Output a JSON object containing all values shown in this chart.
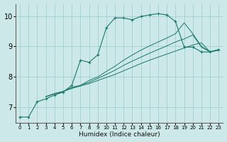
{
  "bg_color": "#cce8e8",
  "line_color": "#1a7a6a",
  "grid_color": "#99cccc",
  "xlabel": "Humidex (Indice chaleur)",
  "xlim": [
    -0.5,
    23.5
  ],
  "ylim": [
    6.5,
    10.4
  ],
  "yticks": [
    7,
    8,
    9,
    10
  ],
  "xticks": [
    0,
    1,
    2,
    3,
    4,
    5,
    6,
    7,
    8,
    9,
    10,
    11,
    12,
    13,
    14,
    15,
    16,
    17,
    18,
    19,
    20,
    21,
    22,
    23
  ],
  "series": [
    {
      "x": [
        0,
        1,
        2,
        3,
        4,
        5,
        6,
        7,
        8,
        9,
        10,
        11,
        12,
        13,
        14,
        15,
        16,
        17,
        18,
        19,
        20,
        21,
        22,
        23
      ],
      "y": [
        6.68,
        6.68,
        7.18,
        7.28,
        7.4,
        7.5,
        7.72,
        8.55,
        8.48,
        8.72,
        9.62,
        9.94,
        9.94,
        9.88,
        9.99,
        10.04,
        10.08,
        10.04,
        9.82,
        8.98,
        8.98,
        8.82,
        8.82,
        8.9
      ],
      "marker": true
    },
    {
      "x": [
        3,
        4,
        5,
        6,
        7,
        8,
        9,
        10,
        11,
        12,
        13,
        14,
        15,
        16,
        17,
        18,
        19,
        20,
        21,
        22,
        23
      ],
      "y": [
        7.35,
        7.45,
        7.52,
        7.65,
        7.72,
        7.88,
        8.0,
        8.18,
        8.35,
        8.55,
        8.72,
        8.88,
        9.02,
        9.15,
        9.28,
        9.42,
        9.78,
        9.42,
        9.0,
        8.83,
        8.9
      ],
      "marker": false
    },
    {
      "x": [
        3,
        4,
        5,
        6,
        7,
        8,
        9,
        10,
        11,
        12,
        13,
        14,
        15,
        16,
        17,
        18,
        19,
        20,
        21,
        22,
        23
      ],
      "y": [
        7.35,
        7.45,
        7.52,
        7.65,
        7.72,
        7.82,
        7.95,
        8.08,
        8.22,
        8.38,
        8.52,
        8.65,
        8.78,
        8.9,
        9.02,
        9.15,
        9.25,
        9.38,
        8.98,
        8.82,
        8.88
      ],
      "marker": false
    },
    {
      "x": [
        3,
        4,
        5,
        6,
        7,
        8,
        9,
        10,
        11,
        12,
        13,
        14,
        15,
        16,
        17,
        18,
        19,
        20,
        21,
        22,
        23
      ],
      "y": [
        7.35,
        7.44,
        7.52,
        7.62,
        7.7,
        7.78,
        7.88,
        7.98,
        8.08,
        8.2,
        8.32,
        8.44,
        8.55,
        8.65,
        8.75,
        8.85,
        8.95,
        9.05,
        9.12,
        8.82,
        8.88
      ],
      "marker": false
    }
  ]
}
